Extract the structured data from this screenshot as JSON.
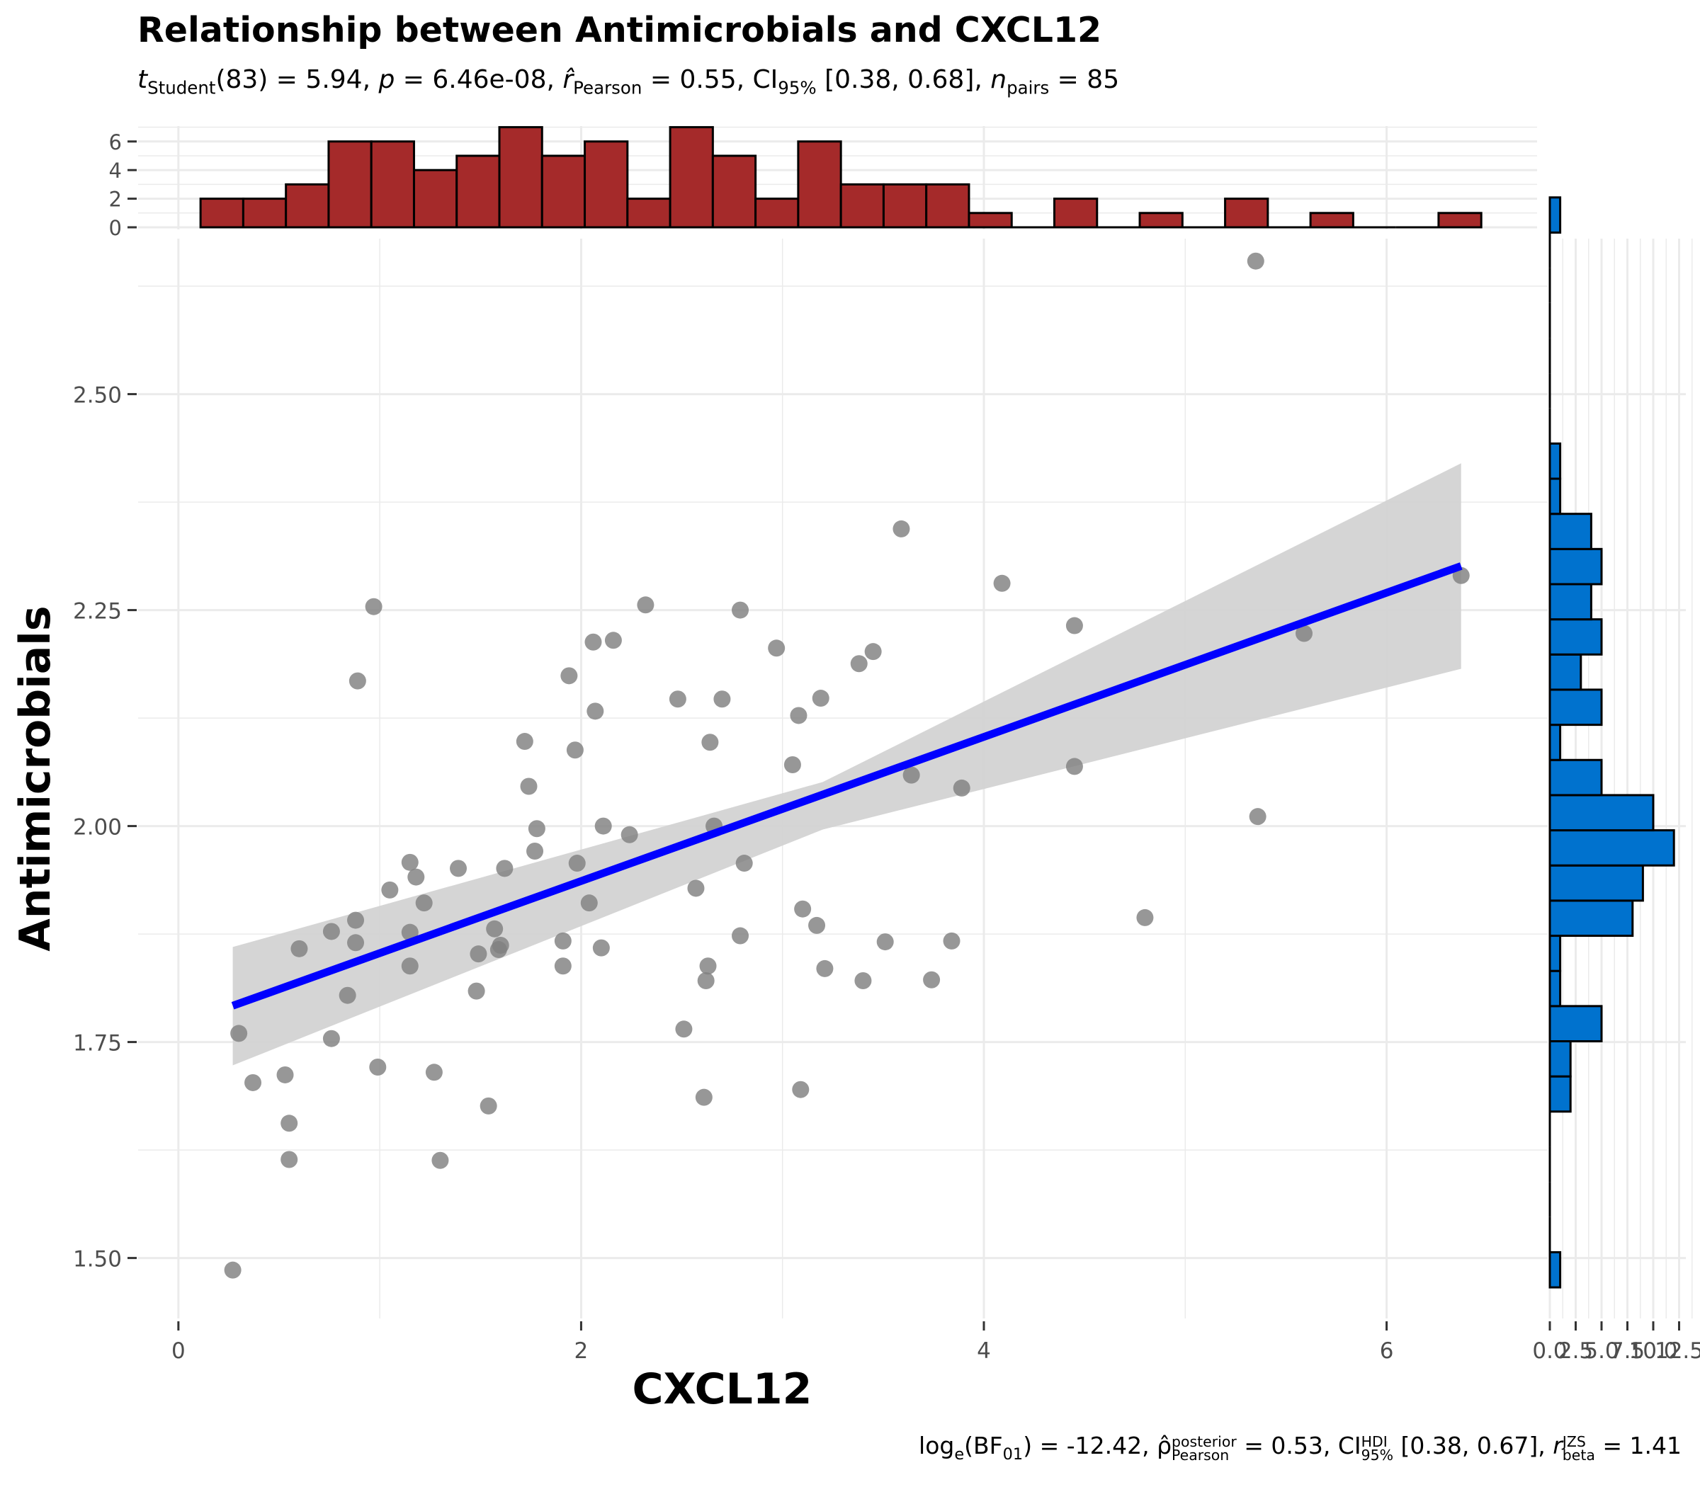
{
  "title": "Relationship between Antimicrobials and CXCL12",
  "subtitle": {
    "t_sym": "t",
    "t_sub": "Student",
    "df": "(83)",
    "t_val": " = 5.94, ",
    "p_sym": "p",
    "p_val": " = 6.46e-08, ",
    "r_sym": "r̂",
    "r_sub": "Pearson",
    "r_val": " = 0.55, CI",
    "ci_sub": "95%",
    "ci_val": " [0.38, 0.68], ",
    "n_sym": "n",
    "n_sub": "pairs",
    "n_val": " = 85"
  },
  "caption": {
    "log": "log",
    "log_sub": "e",
    "bf_open": "(BF",
    "bf_sub": "01",
    "bf_val": ") = -12.42, ",
    "rho": "ρ̂",
    "rho_sup": "posterior",
    "rho_sub": "Pearson",
    "rho_val": " = 0.53, CI",
    "ci_sup": "HDI",
    "ci_sub": "95%",
    "ci_val": " [0.38, 0.67], ",
    "r_sym": "r",
    "r_sup": "JZS",
    "r_sub": "beta",
    "r_val": " = 1.41"
  },
  "colors": {
    "points": "#808080",
    "fit_line": "#0000FF",
    "ci_band": "#D3D3D3",
    "top_hist": "#A52A2A",
    "side_hist": "#0072CE",
    "grid": "#EBEBEB"
  },
  "chart_data": [
    {
      "type": "scatter",
      "xlabel": "CXCL12",
      "ylabel": "Antimicrobials",
      "xlim": [
        -0.2,
        6.8
      ],
      "ylim": [
        1.43,
        2.68
      ],
      "x_ticks": [
        0,
        2,
        4,
        6
      ],
      "x_tick_labels": [
        "0",
        "2",
        "4",
        "6"
      ],
      "y_ticks": [
        1.5,
        1.75,
        2.0,
        2.25,
        2.5
      ],
      "y_tick_labels": [
        "1.50",
        "1.75",
        "2.00",
        "2.25",
        "2.50"
      ],
      "grid": true,
      "x": [
        0.27,
        0.3,
        0.37,
        0.53,
        0.55,
        0.55,
        0.6,
        0.76,
        0.76,
        0.84,
        0.88,
        0.88,
        0.89,
        0.97,
        0.99,
        1.05,
        1.15,
        1.15,
        1.15,
        1.18,
        1.22,
        1.27,
        1.3,
        1.39,
        1.48,
        1.49,
        1.54,
        1.57,
        1.59,
        1.6,
        1.62,
        1.72,
        1.74,
        1.77,
        1.78,
        1.91,
        1.91,
        1.94,
        1.97,
        1.98,
        2.04,
        2.06,
        2.07,
        2.1,
        2.11,
        2.16,
        2.24,
        2.32,
        2.48,
        2.51,
        2.57,
        2.61,
        2.62,
        2.63,
        2.64,
        2.66,
        2.7,
        2.79,
        2.79,
        2.81,
        2.97,
        3.05,
        3.08,
        3.09,
        3.1,
        3.17,
        3.19,
        3.21,
        3.38,
        3.4,
        3.45,
        3.51,
        3.59,
        3.64,
        3.74,
        3.84,
        3.89,
        4.09,
        4.45,
        4.45,
        4.8,
        5.35,
        5.36,
        5.59,
        6.37
      ],
      "y": [
        1.486,
        1.76,
        1.703,
        1.712,
        1.656,
        1.614,
        1.858,
        1.754,
        1.878,
        1.804,
        1.891,
        1.865,
        2.168,
        2.254,
        1.721,
        1.926,
        1.958,
        1.877,
        1.838,
        1.941,
        1.911,
        1.715,
        1.613,
        1.951,
        1.809,
        1.852,
        1.676,
        1.881,
        1.857,
        1.862,
        1.951,
        2.098,
        2.046,
        1.971,
        1.997,
        1.867,
        1.838,
        2.174,
        2.088,
        1.957,
        1.911,
        2.213,
        2.133,
        1.859,
        2.0,
        2.215,
        1.99,
        2.256,
        2.147,
        1.765,
        1.928,
        1.686,
        1.821,
        1.838,
        2.097,
        2.0,
        2.147,
        1.873,
        2.25,
        1.957,
        2.206,
        2.071,
        2.128,
        1.695,
        1.904,
        1.885,
        2.148,
        1.835,
        2.188,
        1.821,
        2.202,
        1.866,
        2.344,
        2.059,
        1.822,
        1.867,
        2.044,
        2.281,
        2.069,
        2.232,
        1.894,
        2.654,
        2.011,
        2.223,
        2.29
      ],
      "fit": {
        "x": [
          0.27,
          6.37
        ],
        "y": [
          1.792,
          2.301
        ],
        "ci_lower_at_ends": [
          1.723,
          2.182
        ],
        "ci_upper_at_ends": [
          1.86,
          2.42
        ],
        "ci_lower_mid": {
          "x": 3.2,
          "y": 1.996
        },
        "ci_upper_mid": {
          "x": 3.2,
          "y": 2.051
        }
      }
    },
    {
      "type": "bar",
      "name": "top marginal histogram (CXCL12)",
      "y_ticks": [
        0,
        2,
        4,
        6
      ],
      "y_tick_labels": [
        "0",
        "2",
        "4",
        "6"
      ],
      "bin_width": 0.212,
      "bin_start": 0.11,
      "values": [
        2,
        2,
        3,
        6,
        6,
        4,
        5,
        7,
        5,
        6,
        2,
        7,
        5,
        2,
        6,
        3,
        3,
        3,
        1,
        0,
        2,
        0,
        1,
        0,
        2,
        0,
        1,
        0,
        0,
        1
      ]
    },
    {
      "type": "bar",
      "name": "right marginal histogram (Antimicrobials)",
      "orientation": "horizontal",
      "x_ticks": [
        0,
        2.5,
        5,
        7.5,
        10,
        12.5
      ],
      "x_tick_labels": [
        "0.0",
        "2.5",
        "5.0",
        "7.5",
        "10.0",
        "12.5"
      ],
      "bin_width": 0.0407,
      "bin_start": 1.466,
      "values": [
        1,
        0,
        0,
        0,
        0,
        2,
        2,
        5,
        1,
        1,
        8,
        9,
        12,
        10,
        5,
        1,
        5,
        3,
        5,
        4,
        5,
        4,
        1,
        1,
        0,
        0,
        0,
        0,
        0,
        0,
        1
      ]
    }
  ]
}
